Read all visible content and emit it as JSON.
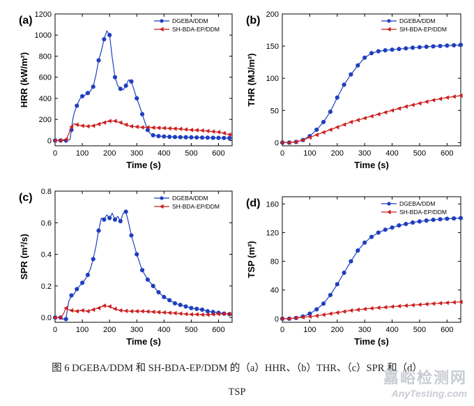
{
  "chart_data": [
    {
      "type": "line",
      "panel_label": "(a)",
      "xlabel": "Time (s)",
      "ylabel": "HRR (kW/m²)",
      "xlim": [
        0,
        650
      ],
      "ylim": [
        -50,
        1200
      ],
      "xticks": [
        0,
        100,
        200,
        300,
        400,
        500,
        600
      ],
      "yticks": [
        0,
        200,
        400,
        600,
        800,
        1000,
        1200
      ],
      "xtick_labels": [
        "0",
        "100",
        "200",
        "300",
        "400",
        "500",
        "600"
      ],
      "ytick_labels": [
        "0",
        "200",
        "400",
        "600",
        "800",
        "1000",
        "1200"
      ],
      "series": [
        {
          "name": "DGEBA/DDM",
          "color": "#1f3fbf",
          "marker": "circle",
          "x": [
            0,
            20,
            40,
            55,
            60,
            65,
            70,
            80,
            90,
            100,
            110,
            120,
            130,
            140,
            150,
            160,
            170,
            180,
            190,
            200,
            210,
            220,
            230,
            240,
            250,
            260,
            270,
            280,
            290,
            300,
            310,
            320,
            330,
            340,
            350,
            360,
            370,
            380,
            400,
            420,
            440,
            460,
            480,
            500,
            520,
            540,
            560,
            580,
            600,
            620,
            650
          ],
          "y": [
            0,
            0,
            0,
            10,
            100,
            200,
            260,
            330,
            390,
            420,
            430,
            450,
            470,
            510,
            620,
            760,
            850,
            960,
            1040,
            1000,
            780,
            600,
            520,
            490,
            480,
            520,
            575,
            560,
            480,
            400,
            330,
            250,
            170,
            100,
            65,
            50,
            45,
            42,
            38,
            35,
            33,
            32,
            31,
            30,
            29,
            28,
            27,
            26,
            25,
            24,
            22
          ],
          "marker_x": [
            0,
            20,
            40,
            60,
            80,
            100,
            120,
            140,
            160,
            180,
            200,
            220,
            240,
            260,
            280,
            300,
            320,
            340,
            360,
            380,
            400,
            420,
            440,
            460,
            480,
            500,
            520,
            540,
            560,
            580,
            600,
            620,
            640
          ]
        },
        {
          "name": "SH-BDA-EP/DDM",
          "color": "#cc1f1f",
          "marker": "triangle-left",
          "x": [
            0,
            20,
            40,
            50,
            60,
            70,
            80,
            100,
            120,
            140,
            160,
            180,
            200,
            220,
            240,
            260,
            280,
            300,
            320,
            340,
            360,
            380,
            400,
            420,
            440,
            460,
            480,
            500,
            520,
            540,
            560,
            580,
            600,
            620,
            650
          ],
          "y": [
            0,
            0,
            10,
            60,
            130,
            160,
            150,
            140,
            135,
            140,
            155,
            170,
            185,
            185,
            170,
            150,
            135,
            130,
            125,
            125,
            122,
            120,
            118,
            115,
            112,
            110,
            105,
            100,
            98,
            95,
            90,
            85,
            80,
            70,
            50
          ],
          "marker_x": [
            0,
            20,
            40,
            60,
            80,
            100,
            120,
            140,
            160,
            180,
            200,
            220,
            240,
            260,
            280,
            300,
            320,
            340,
            360,
            380,
            400,
            420,
            440,
            460,
            480,
            500,
            520,
            540,
            560,
            580,
            600,
            620,
            640
          ]
        }
      ]
    },
    {
      "type": "line",
      "panel_label": "(b)",
      "xlabel": "Time (s)",
      "ylabel": "THR (MJ/m²)",
      "xlim": [
        0,
        650
      ],
      "ylim": [
        -5,
        200
      ],
      "xticks": [
        0,
        100,
        200,
        300,
        400,
        500,
        600
      ],
      "yticks": [
        0,
        50,
        100,
        150,
        200
      ],
      "xtick_labels": [
        "0",
        "100",
        "200",
        "300",
        "400",
        "500",
        "600"
      ],
      "ytick_labels": [
        "0",
        "50",
        "100",
        "150",
        "200"
      ],
      "series": [
        {
          "name": "DGEBA/DDM",
          "color": "#1f3fbf",
          "marker": "circle",
          "x": [
            0,
            25,
            50,
            75,
            100,
            125,
            150,
            175,
            200,
            225,
            250,
            275,
            300,
            325,
            350,
            375,
            400,
            425,
            450,
            475,
            500,
            525,
            550,
            575,
            600,
            625,
            650
          ],
          "y": [
            0,
            0,
            1,
            4,
            10,
            20,
            32,
            48,
            70,
            90,
            106,
            120,
            132,
            139,
            142,
            143.5,
            144.5,
            145.5,
            146.5,
            147.5,
            148.3,
            149,
            149.6,
            150.2,
            150.8,
            151.3,
            152
          ],
          "marker_x": [
            0,
            25,
            50,
            75,
            100,
            125,
            150,
            175,
            200,
            225,
            250,
            275,
            300,
            325,
            350,
            375,
            400,
            425,
            450,
            475,
            500,
            525,
            550,
            575,
            600,
            625,
            650
          ]
        },
        {
          "name": "SH-BDA-EP/DDM",
          "color": "#cc1f1f",
          "marker": "triangle-left",
          "x": [
            0,
            25,
            50,
            75,
            100,
            125,
            150,
            175,
            200,
            225,
            250,
            275,
            300,
            325,
            350,
            375,
            400,
            425,
            450,
            475,
            500,
            525,
            550,
            575,
            600,
            625,
            650
          ],
          "y": [
            0,
            0,
            1,
            4,
            8,
            12,
            16,
            20,
            24,
            28,
            32,
            35,
            38,
            41,
            44,
            47,
            50,
            53,
            56,
            58.5,
            61,
            63.5,
            66,
            68,
            70,
            71.5,
            73
          ],
          "marker_x": [
            0,
            25,
            50,
            75,
            100,
            125,
            150,
            175,
            200,
            225,
            250,
            275,
            300,
            325,
            350,
            375,
            400,
            425,
            450,
            475,
            500,
            525,
            550,
            575,
            600,
            625,
            650
          ]
        }
      ]
    },
    {
      "type": "line",
      "panel_label": "(c)",
      "xlabel": "Time (s)",
      "ylabel": "SPR (m²/s)",
      "xlim": [
        0,
        650
      ],
      "ylim": [
        -0.03,
        0.8
      ],
      "xticks": [
        0,
        100,
        200,
        300,
        400,
        500,
        600
      ],
      "yticks": [
        0.0,
        0.2,
        0.4,
        0.6,
        0.8
      ],
      "xtick_labels": [
        "0",
        "100",
        "200",
        "300",
        "400",
        "500",
        "600"
      ],
      "ytick_labels": [
        "0.0",
        "0.2",
        "0.4",
        "0.6",
        "0.8"
      ],
      "series": [
        {
          "name": "DGEBA/DDM",
          "color": "#1f3fbf",
          "marker": "circle",
          "x": [
            0,
            20,
            30,
            40,
            45,
            50,
            55,
            60,
            70,
            80,
            90,
            100,
            110,
            120,
            130,
            140,
            150,
            160,
            170,
            180,
            190,
            200,
            210,
            220,
            230,
            240,
            250,
            260,
            270,
            280,
            290,
            300,
            310,
            320,
            340,
            360,
            380,
            400,
            420,
            440,
            460,
            480,
            500,
            520,
            540,
            560,
            580,
            600,
            620,
            650
          ],
          "y": [
            0,
            0,
            -0.01,
            -0.01,
            0.05,
            0.1,
            0.12,
            0.14,
            0.15,
            0.18,
            0.2,
            0.22,
            0.24,
            0.27,
            0.31,
            0.37,
            0.45,
            0.55,
            0.63,
            0.62,
            0.65,
            0.63,
            0.66,
            0.62,
            0.64,
            0.61,
            0.66,
            0.67,
            0.6,
            0.52,
            0.46,
            0.4,
            0.35,
            0.3,
            0.24,
            0.2,
            0.16,
            0.13,
            0.11,
            0.09,
            0.08,
            0.07,
            0.06,
            0.055,
            0.05,
            0.04,
            0.035,
            0.03,
            0.025,
            0.02
          ],
          "marker_x": [
            0,
            20,
            40,
            60,
            80,
            100,
            120,
            140,
            160,
            180,
            200,
            220,
            240,
            260,
            280,
            300,
            320,
            340,
            360,
            380,
            400,
            420,
            440,
            460,
            480,
            500,
            520,
            540,
            560,
            580,
            600,
            620,
            640
          ]
        },
        {
          "name": "SH-BDA-EP/DDM",
          "color": "#cc1f1f",
          "marker": "triangle-left",
          "x": [
            0,
            20,
            30,
            40,
            50,
            60,
            80,
            100,
            120,
            140,
            160,
            180,
            200,
            220,
            240,
            260,
            280,
            300,
            320,
            340,
            360,
            380,
            400,
            420,
            440,
            460,
            480,
            500,
            520,
            540,
            560,
            580,
            600,
            620,
            650
          ],
          "y": [
            0,
            0,
            0.02,
            0.06,
            0.05,
            0.045,
            0.04,
            0.045,
            0.04,
            0.05,
            0.06,
            0.075,
            0.07,
            0.055,
            0.045,
            0.042,
            0.04,
            0.04,
            0.04,
            0.038,
            0.036,
            0.034,
            0.032,
            0.03,
            0.028,
            0.025,
            0.022,
            0.02,
            0.02,
            0.018,
            0.018,
            0.02,
            0.022,
            0.025,
            0.02
          ],
          "marker_x": [
            0,
            20,
            40,
            60,
            80,
            100,
            120,
            140,
            160,
            180,
            200,
            220,
            240,
            260,
            280,
            300,
            320,
            340,
            360,
            380,
            400,
            420,
            440,
            460,
            480,
            500,
            520,
            540,
            560,
            580,
            600,
            620,
            640
          ]
        }
      ]
    },
    {
      "type": "line",
      "panel_label": "(d)",
      "xlabel": "Time (s)",
      "ylabel": "TSP (m²)",
      "xlim": [
        0,
        650
      ],
      "ylim": [
        -5,
        170
      ],
      "xticks": [
        0,
        100,
        200,
        300,
        400,
        500,
        600
      ],
      "yticks": [
        0,
        40,
        80,
        120,
        160
      ],
      "xtick_labels": [
        "0",
        "100",
        "200",
        "300",
        "400",
        "500",
        "600"
      ],
      "ytick_labels": [
        "0",
        "40",
        "80",
        "120",
        "160"
      ],
      "series": [
        {
          "name": "DGEBA/DDM",
          "color": "#1f3fbf",
          "marker": "circle",
          "x": [
            0,
            25,
            50,
            75,
            100,
            125,
            150,
            175,
            200,
            225,
            250,
            275,
            300,
            325,
            350,
            375,
            400,
            425,
            450,
            475,
            500,
            525,
            550,
            575,
            600,
            625,
            650
          ],
          "y": [
            0,
            0,
            1,
            3,
            7,
            13,
            21,
            33,
            48,
            64,
            80,
            95,
            106,
            114,
            120,
            124,
            127,
            130,
            132,
            134,
            135.5,
            136.8,
            137.8,
            138.6,
            139.3,
            139.8,
            140.3
          ],
          "marker_x": [
            0,
            25,
            50,
            75,
            100,
            125,
            150,
            175,
            200,
            225,
            250,
            275,
            300,
            325,
            350,
            375,
            400,
            425,
            450,
            475,
            500,
            525,
            550,
            575,
            600,
            625,
            650
          ]
        },
        {
          "name": "SH-BDA-EP/DDM",
          "color": "#cc1f1f",
          "marker": "triangle-left",
          "x": [
            0,
            25,
            50,
            75,
            100,
            125,
            150,
            175,
            200,
            225,
            250,
            275,
            300,
            325,
            350,
            375,
            400,
            425,
            450,
            475,
            500,
            525,
            550,
            575,
            600,
            625,
            650
          ],
          "y": [
            0,
            0,
            1,
            2,
            3,
            4,
            5.5,
            7,
            8.5,
            10,
            11.5,
            12.5,
            13.5,
            14.5,
            15.3,
            16,
            16.8,
            17.5,
            18.2,
            18.9,
            19.6,
            20.3,
            21,
            21.6,
            22.2,
            22.8,
            23.4
          ],
          "marker_x": [
            0,
            25,
            50,
            75,
            100,
            125,
            150,
            175,
            200,
            225,
            250,
            275,
            300,
            325,
            350,
            375,
            400,
            425,
            450,
            475,
            500,
            525,
            550,
            575,
            600,
            625,
            650
          ]
        }
      ]
    }
  ],
  "caption": {
    "line1": "图 6 DGEBA/DDM 和 SH-BDA-EP/DDM 的（a）HHR、（b）THR、（c）SPR 和（d）",
    "line2": "TSP"
  },
  "watermark": {
    "cn": "嘉峪检测网",
    "en": "AnyTesting.com"
  }
}
